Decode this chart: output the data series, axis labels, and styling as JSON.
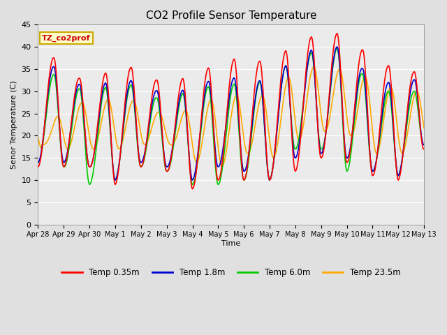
{
  "title": "CO2 Profile Sensor Temperature",
  "ylabel": "Senor Temperature (C)",
  "xlabel": "Time",
  "annotation": "TZ_co2prof",
  "ylim": [
    0,
    45
  ],
  "yticks": [
    0,
    5,
    10,
    15,
    20,
    25,
    30,
    35,
    40,
    45
  ],
  "series": {
    "Temp 0.35m": {
      "color": "#ff0000",
      "lw": 1.2
    },
    "Temp 1.8m": {
      "color": "#0000cc",
      "lw": 1.2
    },
    "Temp 6.0m": {
      "color": "#00cc00",
      "lw": 1.2
    },
    "Temp 23.5m": {
      "color": "#ffaa00",
      "lw": 1.2
    }
  },
  "x_labels": [
    "Apr 28",
    "Apr 29",
    "Apr 30",
    "May 1",
    "May 2",
    "May 3",
    "May 4",
    "May 5",
    "May 6",
    "May 7",
    "May 8",
    "May 9",
    "May 10",
    "May 11",
    "May 12",
    "May 13"
  ],
  "bg_color": "#e0e0e0",
  "plot_bg": "#ebebeb",
  "legend_box_color": "#ffffcc",
  "legend_box_edge": "#ccaa00",
  "n_days": 15,
  "red_peaks": [
    40,
    36,
    31,
    36,
    35,
    31,
    34,
    36,
    38,
    36,
    41,
    43,
    43,
    37,
    35,
    34
  ],
  "red_mins": [
    13,
    13,
    13,
    9,
    13,
    12,
    8,
    10,
    10,
    10,
    12,
    15,
    14,
    11,
    10,
    17
  ],
  "blue_peaks": [
    38,
    34,
    30,
    33,
    32,
    29,
    31,
    33,
    33,
    32,
    38,
    40,
    40,
    32,
    32,
    33
  ],
  "blue_mins": [
    14,
    14,
    13,
    10,
    14,
    13,
    10,
    13,
    12,
    10,
    15,
    16,
    15,
    12,
    11,
    18
  ],
  "green_peaks": [
    35,
    33,
    29,
    32,
    31,
    27,
    31,
    31,
    32,
    32,
    38,
    39,
    40,
    30,
    30,
    30
  ],
  "green_mins": [
    14,
    13,
    9,
    10,
    13,
    12,
    9,
    9,
    10,
    10,
    17,
    17,
    12,
    12,
    11,
    18
  ],
  "orange_peaks": [
    19,
    28,
    27,
    29,
    27,
    24,
    27,
    29,
    29,
    29,
    36,
    35,
    35,
    32,
    30,
    30
  ],
  "orange_mins": [
    18,
    17,
    17,
    17,
    18,
    18,
    14,
    13,
    16,
    15,
    19,
    21,
    20,
    16,
    16,
    19
  ],
  "peak_phase": 0.62,
  "orange_lag": 0.15
}
